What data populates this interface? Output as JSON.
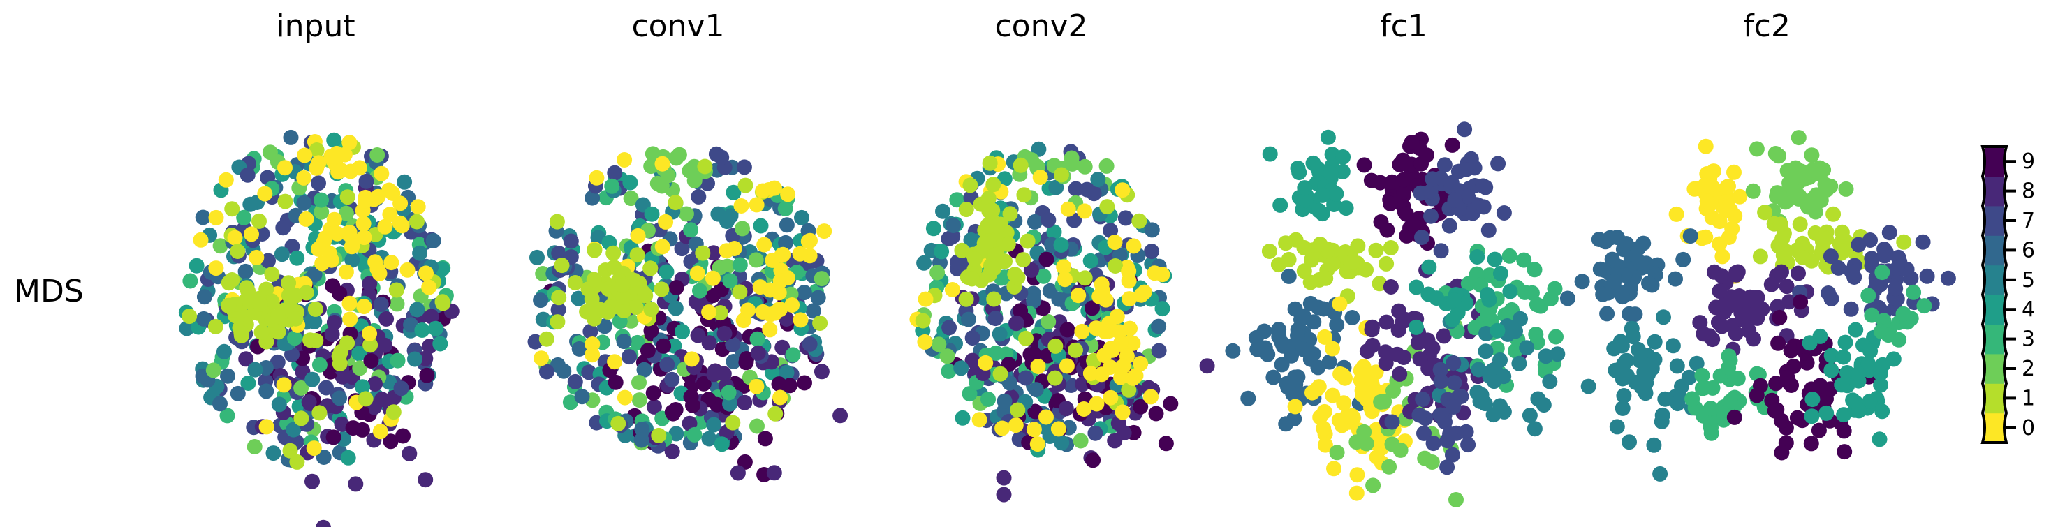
{
  "row_label": "MDS",
  "panel_titles": [
    "input",
    "conv1",
    "conv2",
    "fc1",
    "fc2"
  ],
  "colorbar": {
    "ticks": [
      "0",
      "1",
      "2",
      "3",
      "4",
      "5",
      "6",
      "7",
      "8",
      "9"
    ],
    "colors": [
      "#fde725",
      "#b5de2b",
      "#6ece58",
      "#35b779",
      "#1f9e89",
      "#26828e",
      "#31688e",
      "#3e4989",
      "#482878",
      "#440154"
    ],
    "colormap": "viridis"
  },
  "chart_data": [
    {
      "type": "scatter",
      "title": "input",
      "row": "MDS",
      "xticks": [],
      "yticks": [],
      "axes_visible": false,
      "classes": [
        "0",
        "1",
        "2",
        "3",
        "4",
        "5",
        "6",
        "7",
        "8",
        "9"
      ],
      "structure": "single mixed blob; 1 forms a cluster at the left; 0 concentrated at the top right"
    },
    {
      "type": "scatter",
      "title": "conv1",
      "row": "MDS",
      "xticks": [],
      "yticks": [],
      "axes_visible": false,
      "classes": [
        "0",
        "1",
        "2",
        "3",
        "4",
        "5",
        "6",
        "7",
        "8",
        "9"
      ],
      "structure": "single mixed blob; 1 clusters left; 0 on the right edge"
    },
    {
      "type": "scatter",
      "title": "conv2",
      "row": "MDS",
      "xticks": [],
      "yticks": [],
      "axes_visible": false,
      "classes": [
        "0",
        "1",
        "2",
        "3",
        "4",
        "5",
        "6",
        "7",
        "8",
        "9"
      ],
      "structure": "single mixed blob; 1 clusters upper-left; 0 lower-right"
    },
    {
      "type": "scatter",
      "title": "fc1",
      "row": "MDS",
      "xticks": [],
      "yticks": [],
      "axes_visible": false,
      "classes": [
        "0",
        "1",
        "2",
        "3",
        "4",
        "5",
        "6",
        "7",
        "8",
        "9"
      ],
      "structure": "partially separated clusters"
    },
    {
      "type": "scatter",
      "title": "fc2",
      "row": "MDS",
      "xticks": [],
      "yticks": [],
      "axes_visible": false,
      "classes": [
        "0",
        "1",
        "2",
        "3",
        "4",
        "5",
        "6",
        "7",
        "8",
        "9"
      ],
      "structure": "well separated clusters"
    }
  ]
}
